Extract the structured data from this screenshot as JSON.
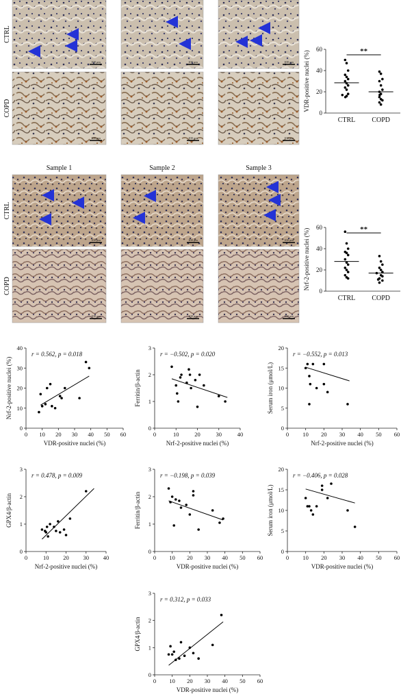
{
  "panel_a": {
    "row_labels": [
      "CTRL",
      "COPD"
    ],
    "scale_labels": [
      "100 μm",
      "100 μm",
      "100 μm",
      "100 μm",
      "100 μm",
      "100 μm"
    ]
  },
  "panel_b": {
    "column_labels": [
      "Sample 1",
      "Sample 2",
      "Sample 3"
    ],
    "row_labels": [
      "CTRL",
      "COPD"
    ],
    "scale_labels": [
      "100 μm",
      "100 μm",
      "100 μm",
      "100 μm",
      "100 μm",
      "100 μm"
    ]
  },
  "colors": {
    "arrow": "#2433d6",
    "tissue_pink": "#d9b9a6",
    "nuclei": "#2e2f55",
    "brown_stain": "#9a5a2a"
  },
  "chart_data": [
    {
      "id": "vdr-dotplot",
      "type": "scatter",
      "ylabel": "VDR-positive nuclei (%)",
      "categories": [
        "CTRL",
        "COPD"
      ],
      "ylim": [
        0,
        60
      ],
      "yticks": [
        0,
        20,
        40,
        60
      ],
      "significance": "**",
      "series": [
        {
          "values": [
            50,
            47,
            40,
            36,
            34,
            32,
            30,
            28,
            26,
            24,
            22,
            18,
            17,
            16,
            15
          ],
          "mean": 28.5
        },
        {
          "values": [
            39,
            37,
            32,
            30,
            26,
            22,
            20,
            18,
            17,
            15,
            13,
            12,
            10,
            8
          ],
          "mean": 20
        }
      ]
    },
    {
      "id": "nrf2-dotplot",
      "type": "scatter",
      "ylabel": "Nrf-2-positive nuclei (%)",
      "categories": [
        "CTRL",
        "COPD"
      ],
      "ylim": [
        0,
        60
      ],
      "yticks": [
        0,
        20,
        40,
        60
      ],
      "significance": "**",
      "series": [
        {
          "values": [
            56,
            45,
            40,
            37,
            36,
            34,
            30,
            27,
            25,
            22,
            20,
            18,
            15,
            13,
            12
          ],
          "mean": 28
        },
        {
          "values": [
            33,
            28,
            25,
            22,
            20,
            18,
            17,
            15,
            14,
            12,
            11,
            10,
            8
          ],
          "mean": 17
        }
      ]
    },
    {
      "id": "scatter-vdr-nrf2",
      "type": "scatter",
      "annotation": "r = 0.562, p = 0.018",
      "xlabel": "VDR-positive nuclei (%)",
      "ylabel": "Nrf-2-positive nuclei (%)",
      "xlim": [
        0,
        60
      ],
      "ylim": [
        0,
        40
      ],
      "xticks": [
        0,
        10,
        20,
        30,
        40,
        50,
        60
      ],
      "yticks": [
        0,
        10,
        20,
        30,
        40
      ],
      "points": [
        [
          8,
          8
        ],
        [
          9,
          17
        ],
        [
          10,
          11
        ],
        [
          12,
          12
        ],
        [
          13,
          20
        ],
        [
          15,
          22
        ],
        [
          16,
          11
        ],
        [
          18,
          10
        ],
        [
          21,
          16
        ],
        [
          22,
          15
        ],
        [
          24,
          20
        ],
        [
          33,
          15
        ],
        [
          37,
          33
        ],
        [
          39,
          30
        ]
      ],
      "fit": [
        [
          9,
          11.5
        ],
        [
          39,
          26
        ]
      ]
    },
    {
      "id": "scatter-nrf2-ferritin",
      "type": "scatter",
      "annotation": "r = −0.502, p = 0.020",
      "xlabel": "Nrf-2-positive nuclei (%)",
      "ylabel": "Ferritin/β-actin",
      "xlim": [
        0,
        40
      ],
      "ylim": [
        0,
        3
      ],
      "xticks": [
        0,
        10,
        20,
        30,
        40
      ],
      "yticks": [
        0,
        1,
        2,
        3
      ],
      "points": [
        [
          8,
          2.3
        ],
        [
          10,
          1.6
        ],
        [
          10.5,
          1.3
        ],
        [
          11,
          1.0
        ],
        [
          12,
          1.9
        ],
        [
          12.5,
          2.0
        ],
        [
          15,
          1.7
        ],
        [
          16,
          2.2
        ],
        [
          16.5,
          2.0
        ],
        [
          17,
          1.5
        ],
        [
          19,
          1.8
        ],
        [
          20,
          0.8
        ],
        [
          21,
          2.0
        ],
        [
          23,
          1.6
        ],
        [
          30,
          1.2
        ],
        [
          33,
          1.0
        ]
      ],
      "fit": [
        [
          8,
          1.85
        ],
        [
          34,
          1.15
        ]
      ]
    },
    {
      "id": "scatter-nrf2-serum-iron",
      "type": "scatter",
      "annotation": "r = −0.552, p = 0.013",
      "xlabel": "Nrf-2-positive nuclei (%)",
      "ylabel": "Serum iron (μmol/L)",
      "xlim": [
        0,
        60
      ],
      "ylim": [
        0,
        20
      ],
      "xticks": [
        0,
        10,
        20,
        30,
        40,
        50,
        60
      ],
      "yticks": [
        0,
        5,
        10,
        15,
        20
      ],
      "points": [
        [
          10,
          15
        ],
        [
          11,
          16
        ],
        [
          12,
          13
        ],
        [
          12.5,
          11
        ],
        [
          12,
          6
        ],
        [
          14,
          16
        ],
        [
          16,
          10
        ],
        [
          20,
          16
        ],
        [
          20,
          11
        ],
        [
          22,
          9
        ],
        [
          33,
          6
        ]
      ],
      "fit": [
        [
          10,
          15.2
        ],
        [
          34,
          11.8
        ]
      ]
    },
    {
      "id": "scatter-nrf2-gpx4",
      "type": "scatter",
      "annotation": "r = 0.478, p = 0.009",
      "xlabel": "Nrf-2-positive nuclei (%)",
      "ylabel": "GPX4/β-actin",
      "xlim": [
        0,
        40
      ],
      "ylim": [
        0,
        3
      ],
      "xticks": [
        0,
        10,
        20,
        30,
        40
      ],
      "yticks": [
        0,
        1,
        2,
        3
      ],
      "points": [
        [
          8,
          0.8
        ],
        [
          9.5,
          0.75
        ],
        [
          10,
          0.7
        ],
        [
          10.5,
          0.9
        ],
        [
          11,
          0.55
        ],
        [
          12,
          1.0
        ],
        [
          14,
          0.9
        ],
        [
          15,
          0.75
        ],
        [
          16,
          1.1
        ],
        [
          17,
          0.7
        ],
        [
          19,
          0.8
        ],
        [
          20,
          0.6
        ],
        [
          22,
          1.2
        ],
        [
          30,
          2.2
        ]
      ],
      "fit": [
        [
          8,
          0.45
        ],
        [
          34,
          2.3
        ]
      ]
    },
    {
      "id": "scatter-vdr-ferritin",
      "type": "scatter",
      "annotation": "r = −0.198, p = 0.039",
      "xlabel": "VDR-positive nuclei (%)",
      "ylabel": "Ferritin/β-actin",
      "xlim": [
        0,
        60
      ],
      "ylim": [
        0,
        3
      ],
      "xticks": [
        0,
        10,
        20,
        30,
        40,
        50,
        60
      ],
      "yticks": [
        0,
        1,
        2,
        3
      ],
      "points": [
        [
          8,
          2.3
        ],
        [
          9,
          1.8
        ],
        [
          10,
          2.0
        ],
        [
          11,
          0.95
        ],
        [
          12,
          1.9
        ],
        [
          14,
          1.85
        ],
        [
          15,
          1.6
        ],
        [
          18,
          1.7
        ],
        [
          20,
          1.35
        ],
        [
          22,
          2.05
        ],
        [
          22,
          2.2
        ],
        [
          25,
          0.8
        ],
        [
          33,
          1.5
        ],
        [
          37,
          1.05
        ],
        [
          39,
          1.2
        ]
      ],
      "fit": [
        [
          8,
          1.85
        ],
        [
          39,
          1.15
        ]
      ]
    },
    {
      "id": "scatter-vdr-serum-iron",
      "type": "scatter",
      "annotation": "r = −0.406, p = 0.028",
      "xlabel": "VDR-positive nuclei (%)",
      "ylabel": "Serum iron (μmol/L)",
      "xlim": [
        0,
        60
      ],
      "ylim": [
        0,
        20
      ],
      "xticks": [
        0,
        10,
        20,
        30,
        40,
        50,
        60
      ],
      "yticks": [
        0,
        5,
        10,
        15,
        20
      ],
      "points": [
        [
          10,
          13
        ],
        [
          11,
          11
        ],
        [
          12,
          11
        ],
        [
          13,
          10
        ],
        [
          14,
          9
        ],
        [
          16,
          11
        ],
        [
          19,
          16
        ],
        [
          19,
          15
        ],
        [
          22,
          13
        ],
        [
          24,
          16.5
        ],
        [
          33,
          10
        ],
        [
          37,
          6
        ]
      ],
      "fit": [
        [
          10,
          15.2
        ],
        [
          37,
          11.8
        ]
      ]
    },
    {
      "id": "scatter-vdr-gpx4",
      "type": "scatter",
      "annotation": "r = 0.312, p = 0.033",
      "xlabel": "VDR-positive nuclei (%)",
      "ylabel": "GPX4/β-actin",
      "xlim": [
        0,
        60
      ],
      "ylim": [
        0,
        3
      ],
      "xticks": [
        0,
        10,
        20,
        30,
        40,
        50,
        60
      ],
      "yticks": [
        0,
        1,
        2,
        3
      ],
      "points": [
        [
          8,
          0.75
        ],
        [
          9,
          1.05
        ],
        [
          10,
          0.75
        ],
        [
          11,
          0.85
        ],
        [
          12,
          0.55
        ],
        [
          14,
          0.6
        ],
        [
          15,
          1.2
        ],
        [
          17,
          0.7
        ],
        [
          20,
          1.0
        ],
        [
          22,
          0.8
        ],
        [
          25,
          0.6
        ],
        [
          33,
          1.1
        ],
        [
          38,
          2.2
        ]
      ],
      "fit": [
        [
          8,
          0.35
        ],
        [
          39,
          1.95
        ]
      ]
    }
  ]
}
